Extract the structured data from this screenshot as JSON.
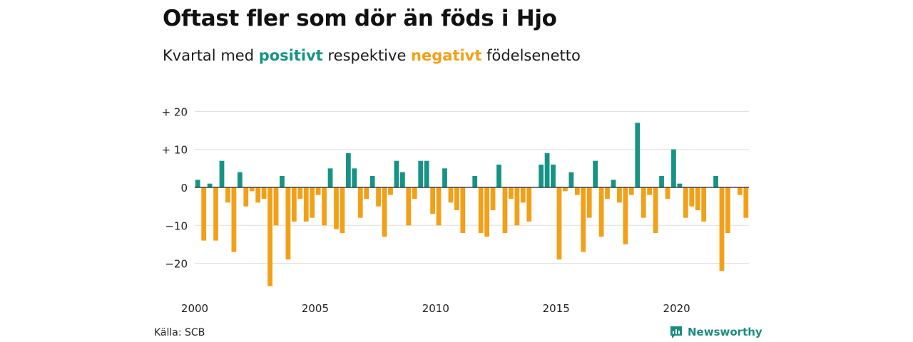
{
  "title": "Oftast fler som dör än föds i Hjo",
  "subtitle": {
    "before": "Kvartal med ",
    "positive_word": "positivt",
    "middle": " respektive ",
    "negative_word": "negativt",
    "after": " födelsenetto"
  },
  "source": "Källa: SCB",
  "brand": "Newsworthy",
  "colors": {
    "positive": "#159485",
    "negative": "#F2A018",
    "grid": "#dddddd",
    "zero": "#222222"
  },
  "chart_data": {
    "type": "bar",
    "title": "Oftast fler som dör än föds i Hjo",
    "subtitle": "Kvartal med positivt respektive negativt födelsenetto",
    "xlabel": "",
    "ylabel": "",
    "x_start_year": 2000,
    "periods_per_year": 4,
    "xlim": [
      2000,
      2023
    ],
    "x_ticks": [
      2000,
      2005,
      2010,
      2015,
      2020
    ],
    "x_tick_labels": [
      "2000",
      "2005",
      "2010",
      "2015",
      "2020"
    ],
    "ylim": [
      -28,
      22
    ],
    "y_ticks": [
      20,
      10,
      0,
      -10,
      -20
    ],
    "y_tick_labels": [
      "+ 20",
      "+ 10",
      "0",
      "−10",
      "−20"
    ],
    "grid": true,
    "legend": "none",
    "values": [
      2,
      -14,
      1,
      -14,
      7,
      -4,
      -17,
      4,
      -5,
      -1,
      -4,
      -3,
      -26,
      -10,
      3,
      -19,
      -9,
      -3,
      -9,
      -8,
      -2,
      -10,
      5,
      -11,
      -12,
      9,
      5,
      -8,
      -3,
      3,
      -5,
      -13,
      -2,
      7,
      4,
      -10,
      -3,
      7,
      7,
      -7,
      -10,
      5,
      -4,
      -6,
      -12,
      0,
      3,
      -12,
      -13,
      -6,
      6,
      -12,
      -3,
      -10,
      -4,
      -9,
      0,
      6,
      9,
      6,
      -19,
      -1,
      4,
      -2,
      -17,
      -8,
      7,
      -13,
      -3,
      2,
      -4,
      -15,
      -2,
      17,
      -8,
      -2,
      -12,
      3,
      -3,
      10,
      1,
      -8,
      -5,
      -6,
      -9,
      0,
      3,
      -22,
      -12,
      0,
      -2,
      -8
    ]
  }
}
